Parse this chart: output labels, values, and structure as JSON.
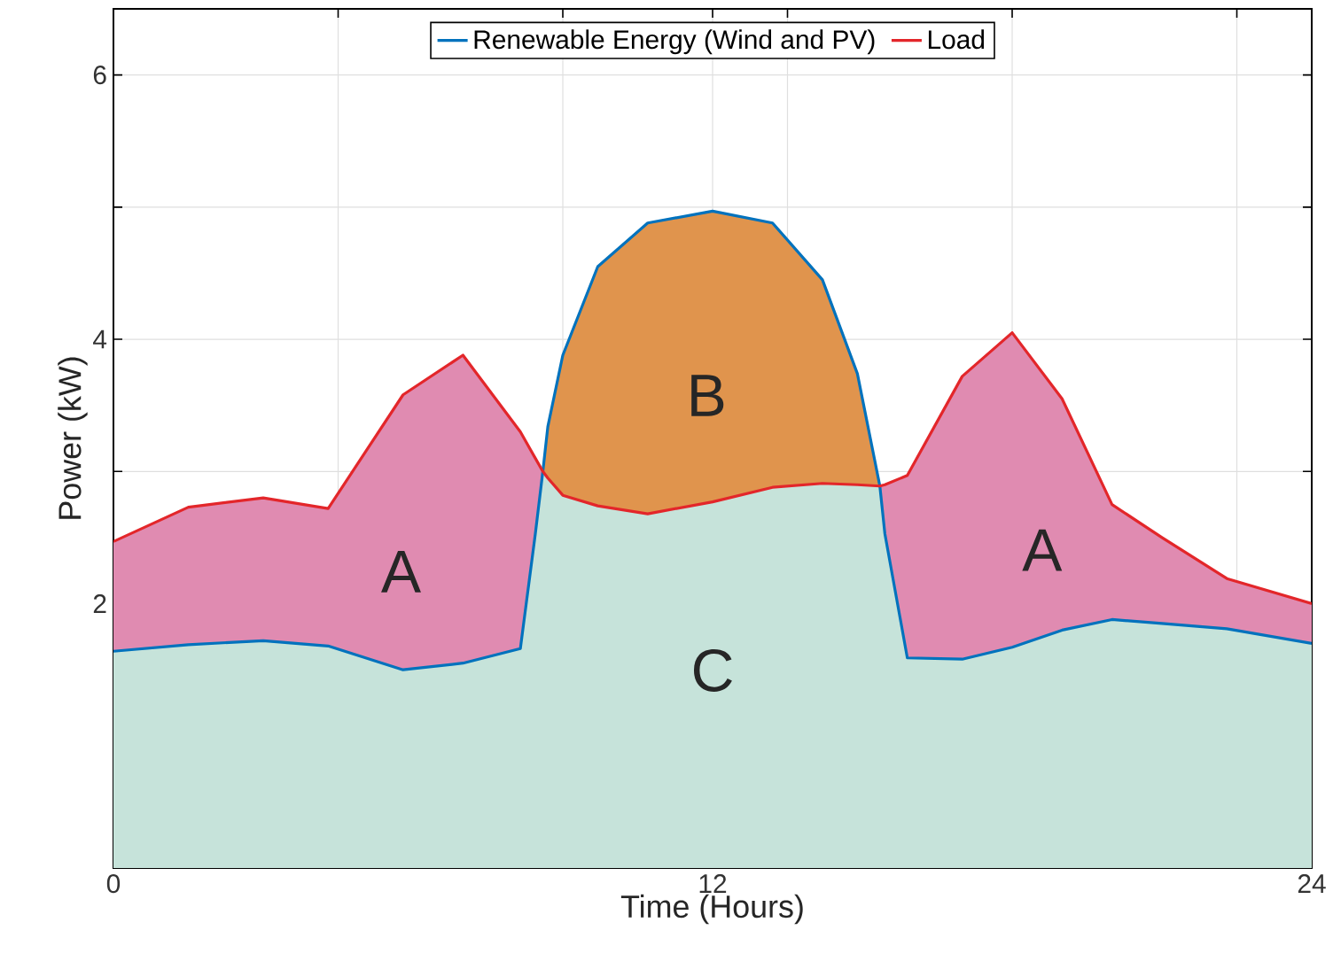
{
  "chart_data": {
    "type": "area",
    "xlabel": "Time (Hours)",
    "ylabel": "Power (kW)",
    "xlim": [
      0,
      24
    ],
    "ylim": [
      0,
      6.5
    ],
    "xticks": [
      0,
      {
        "value": 4.5,
        "label": null
      },
      {
        "value": 9,
        "label": null
      },
      12,
      {
        "value": 13.5,
        "label": null
      },
      {
        "value": 18,
        "label": null
      },
      {
        "value": 22.5,
        "label": null
      },
      24
    ],
    "yticks": [
      {
        "value": 0,
        "label": null
      },
      {
        "value": 1,
        "label": null
      },
      2,
      {
        "value": 3,
        "label": null
      },
      4,
      {
        "value": 5,
        "label": null
      },
      6
    ],
    "grid": true,
    "legend": "top",
    "line_style": "solid",
    "marker": "none",
    "x": [
      0,
      1.5,
      3,
      4.3,
      5.8,
      7,
      8.15,
      8.45,
      8.6,
      8.7,
      9.0,
      9.7,
      10.7,
      12,
      13.2,
      14.2,
      14.9,
      15.35,
      15.45,
      15.9,
      17,
      18,
      19,
      20,
      21,
      22.3,
      24
    ],
    "series": [
      {
        "color": "#c6e3da",
        "values": [
          1.64,
          1.69,
          1.72,
          1.68,
          1.5,
          1.55,
          1.66,
          2.53,
          3.0,
          2.95,
          2.82,
          2.74,
          2.68,
          2.77,
          2.88,
          2.91,
          2.9,
          2.89,
          2.53,
          1.59,
          1.58,
          1.67,
          1.8,
          1.88,
          1.85,
          1.81,
          1.7
        ]
      },
      {
        "color": "#e08bb1",
        "values": [
          2.47,
          2.73,
          2.8,
          2.72,
          3.58,
          3.88,
          3.3,
          3.1,
          3.0,
          null,
          null,
          null,
          null,
          null,
          null,
          null,
          null,
          2.89,
          2.9,
          2.97,
          3.72,
          4.05,
          3.55,
          2.75,
          2.5,
          2.19,
          2.0
        ]
      },
      {
        "color": "#e0944d",
        "values": [
          null,
          null,
          null,
          null,
          null,
          null,
          null,
          null,
          3.0,
          3.34,
          3.88,
          4.55,
          4.88,
          4.97,
          4.88,
          4.45,
          3.74,
          2.89,
          null,
          null,
          null,
          null,
          null,
          null,
          null,
          null,
          null
        ]
      },
      {
        "name": "Renewable Energy (Wind and PV)",
        "type": "line",
        "color": "#0072bd",
        "values": [
          1.64,
          1.69,
          1.72,
          1.68,
          1.5,
          1.55,
          1.66,
          2.53,
          3.0,
          3.34,
          3.88,
          4.55,
          4.88,
          4.97,
          4.88,
          4.45,
          3.74,
          2.89,
          2.53,
          1.59,
          1.58,
          1.67,
          1.8,
          1.88,
          1.85,
          1.81,
          1.7
        ]
      },
      {
        "name": "Load",
        "type": "line",
        "color": "#e3262a",
        "values": [
          2.47,
          2.73,
          2.8,
          2.72,
          3.58,
          3.88,
          3.3,
          3.1,
          3.0,
          2.95,
          2.82,
          2.74,
          2.68,
          2.77,
          2.88,
          2.91,
          2.9,
          2.89,
          2.9,
          2.97,
          3.72,
          4.05,
          3.55,
          2.75,
          2.5,
          2.19,
          2.0
        ]
      }
    ],
    "annotations": [
      "A",
      "B",
      "C",
      "A"
    ]
  }
}
